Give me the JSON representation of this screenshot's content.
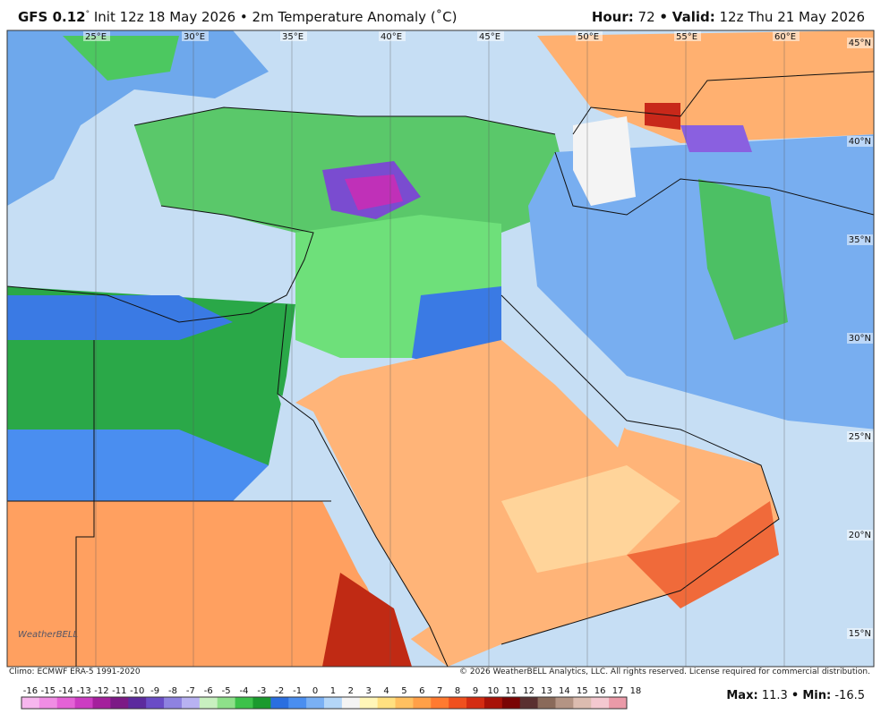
{
  "header": {
    "model": "GFS 0.12",
    "degree": "°",
    "init": "Init 12z 18 May 2026 • 2m Temperature Anomaly (˚C)",
    "hour_label": "Hour:",
    "hour": 72,
    "sep": "•",
    "valid_label": "Valid:",
    "valid": "12z Thu 21 May 2026"
  },
  "map": {
    "lon_labels": [
      "25°E",
      "30°E",
      "35°E",
      "40°E",
      "45°E",
      "50°E",
      "55°E",
      "60°E"
    ],
    "lat_labels": [
      "45°N",
      "40°N",
      "35°N",
      "30°N",
      "25°N",
      "20°N",
      "15°N"
    ],
    "logo": "WeatherBELL"
  },
  "footer": {
    "climo": "Climo: ECMWF ERA-5 1991-2020",
    "copyright": "© 2026 WeatherBELL Analytics, LLC. All rights reserved. License required for commercial distribution.",
    "max_label": "Max:",
    "max": 11.3,
    "sep": "•",
    "min_label": "Min:",
    "min": -16.5
  },
  "colorbar": {
    "ticks": [
      -16,
      -15,
      -14,
      -13,
      -12,
      -11,
      -10,
      -9,
      -8,
      -7,
      -6,
      -5,
      -4,
      -3,
      -2,
      -1,
      0,
      1,
      2,
      3,
      4,
      5,
      6,
      7,
      8,
      9,
      10,
      11,
      12,
      13,
      14,
      15,
      16,
      17,
      18
    ],
    "colors": [
      "#f7b6ee",
      "#f08de4",
      "#e462d6",
      "#cc3cc2",
      "#a4209c",
      "#7c1a86",
      "#5c2a9e",
      "#6a4cc6",
      "#8e82e0",
      "#b8b2f2",
      "#c8f0c0",
      "#8ee08a",
      "#3cc24a",
      "#1a9a2e",
      "#2a6ee0",
      "#4a8ef0",
      "#7ab0f4",
      "#b4d6f8",
      "#f4f4f4",
      "#fff6b8",
      "#ffe080",
      "#ffc060",
      "#ffa048",
      "#ff7a30",
      "#f0501e",
      "#d42c12",
      "#a81208",
      "#7a0404",
      "#5a3030",
      "#8a6a5a",
      "#b49484",
      "#dcbcb0",
      "#f4c8d0",
      "#ea9aa8",
      "#d46070"
    ]
  }
}
